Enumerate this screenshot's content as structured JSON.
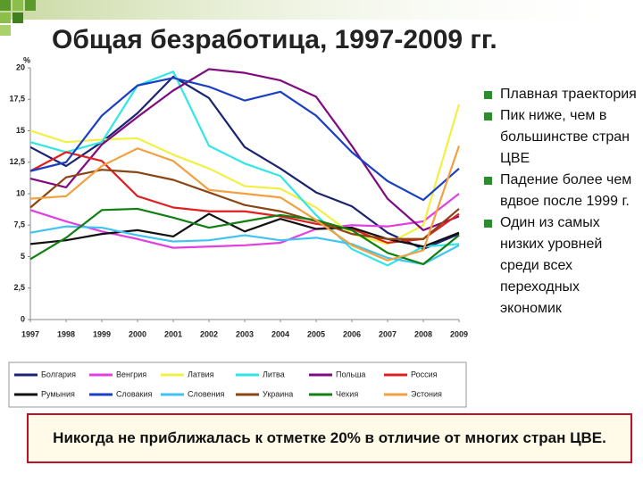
{
  "slide": {
    "title": "Общая безработица, 1997-2009 гг.",
    "bullets": [
      "Плавная траектория",
      "Пик ниже, чем в большинстве стран ЦВЕ",
      "Падение более чем вдвое после 1999 г.",
      "Один из самых низких уровней среди всех переходных экономик"
    ],
    "footer": "Никогда не приближалась к отметке 20% в отличие от многих стран ЦВЕ."
  },
  "chart_data": {
    "type": "line",
    "y_label": "%",
    "categories": [
      "1997",
      "1998",
      "1999",
      "2000",
      "2001",
      "2002",
      "2003",
      "2004",
      "2005",
      "2006",
      "2007",
      "2008",
      "2009"
    ],
    "ylim": [
      0,
      20
    ],
    "yticks": [
      0,
      {
        "value": 2.5,
        "label": "2,5"
      },
      5,
      {
        "value": 7.5,
        "label": "7,5"
      },
      10,
      {
        "value": 12.5,
        "label": "12,5"
      },
      15,
      {
        "value": 17.5,
        "label": "17,5"
      },
      20
    ],
    "grid": false,
    "legend": "bottom",
    "series": [
      {
        "name": "Болгария",
        "color": "#1b2470",
        "values": [
          13.7,
          12.2,
          14.1,
          16.4,
          19.3,
          17.6,
          13.7,
          12.0,
          10.1,
          9.0,
          6.9,
          5.6,
          6.8
        ]
      },
      {
        "name": "Венгрия",
        "color": "#e23fe0",
        "values": [
          8.7,
          7.8,
          7.0,
          6.4,
          5.7,
          5.8,
          5.9,
          6.1,
          7.2,
          7.5,
          7.4,
          7.8,
          10.0
        ]
      },
      {
        "name": "Латвия",
        "color": "#f2f044",
        "values": [
          15.0,
          14.1,
          14.3,
          14.4,
          13.1,
          12.0,
          10.6,
          10.4,
          8.9,
          6.8,
          6.0,
          7.5,
          17.1
        ]
      },
      {
        "name": "Литва",
        "color": "#33e6e6",
        "values": [
          14.1,
          13.3,
          14.1,
          18.6,
          19.7,
          13.8,
          12.4,
          11.4,
          8.3,
          5.6,
          4.3,
          5.8,
          6.0
        ]
      },
      {
        "name": "Польша",
        "color": "#800a80",
        "values": [
          11.2,
          10.5,
          13.9,
          16.1,
          18.2,
          19.9,
          19.6,
          19.0,
          17.7,
          13.8,
          9.6,
          7.1,
          8.2
        ]
      },
      {
        "name": "Россия",
        "color": "#e02020",
        "values": [
          11.8,
          13.3,
          12.6,
          9.8,
          8.9,
          8.6,
          8.6,
          8.2,
          7.6,
          7.2,
          6.1,
          6.4,
          8.4
        ]
      },
      {
        "name": "Румыния",
        "color": "#111111",
        "values": [
          6.0,
          6.3,
          6.8,
          7.1,
          6.6,
          8.4,
          7.0,
          8.0,
          7.2,
          7.3,
          6.4,
          5.8,
          6.9
        ]
      },
      {
        "name": "Словакия",
        "color": "#1a3fc4",
        "values": [
          11.8,
          12.5,
          16.2,
          18.6,
          19.2,
          18.5,
          17.4,
          18.1,
          16.2,
          13.3,
          11.0,
          9.5,
          12.0
        ]
      },
      {
        "name": "Словения",
        "color": "#3fc3f2",
        "values": [
          6.9,
          7.4,
          7.3,
          6.7,
          6.2,
          6.3,
          6.7,
          6.3,
          6.5,
          6.0,
          4.9,
          4.4,
          5.9
        ]
      },
      {
        "name": "Украина",
        "color": "#8b4513",
        "values": [
          8.9,
          11.3,
          11.9,
          11.7,
          11.1,
          10.1,
          9.1,
          8.6,
          7.8,
          6.8,
          6.4,
          6.4,
          8.8
        ]
      },
      {
        "name": "Чехия",
        "color": "#118011",
        "values": [
          4.8,
          6.5,
          8.7,
          8.8,
          8.1,
          7.3,
          7.8,
          8.3,
          7.9,
          7.1,
          5.3,
          4.4,
          6.7
        ]
      },
      {
        "name": "Эстония",
        "color": "#f2a040",
        "values": [
          9.6,
          9.8,
          12.2,
          13.6,
          12.6,
          10.3,
          10.0,
          9.7,
          7.9,
          5.9,
          4.7,
          5.5,
          13.8
        ]
      }
    ]
  }
}
